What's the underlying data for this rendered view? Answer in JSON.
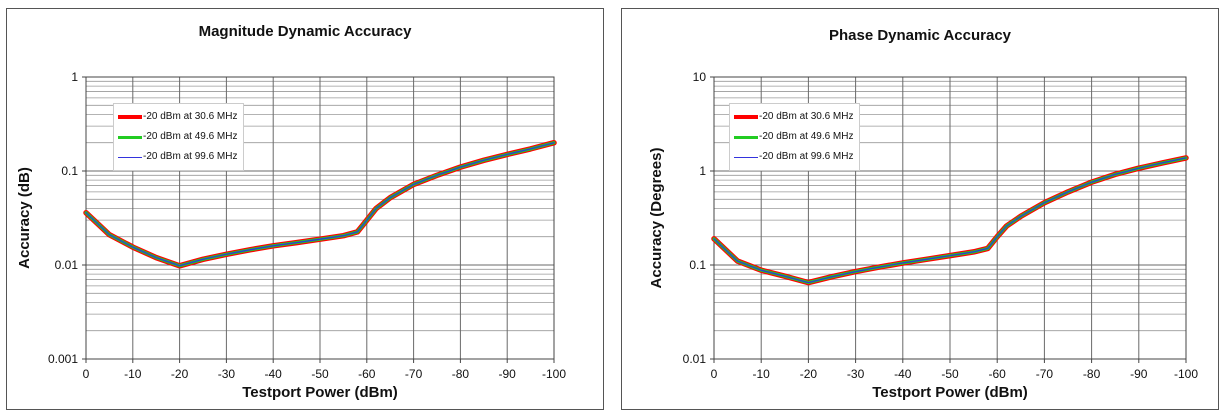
{
  "chart_data": [
    {
      "type": "line",
      "title": "Magnitude Dynamic Accuracy",
      "xlabel": "Testport Power (dBm)",
      "ylabel": "Accuracy (dB)",
      "x_ticks": [
        "0",
        "-10",
        "-20",
        "-30",
        "-40",
        "-50",
        "-60",
        "-70",
        "-80",
        "-90",
        "-100"
      ],
      "y_ticks": [
        "1",
        "0.1",
        "0.01",
        "0.001"
      ],
      "xlim": [
        0,
        -100
      ],
      "ylim": [
        0.001,
        1
      ],
      "y_scale": "log",
      "grid": true,
      "legend": "top-left",
      "series": [
        {
          "name": "-20 dBm at 30.6 MHz",
          "color": "#ff0000",
          "x": [
            0,
            -5,
            -10,
            -15,
            -20,
            -25,
            -30,
            -35,
            -40,
            -45,
            -50,
            -55,
            -58,
            -60,
            -62,
            -65,
            -70,
            -75,
            -80,
            -85,
            -90,
            -95,
            -100
          ],
          "y": [
            0.036,
            0.021,
            0.0155,
            0.012,
            0.0098,
            0.0115,
            0.013,
            0.0145,
            0.016,
            0.0173,
            0.0188,
            0.0205,
            0.0225,
            0.03,
            0.04,
            0.052,
            0.072,
            0.09,
            0.11,
            0.13,
            0.15,
            0.172,
            0.2
          ]
        },
        {
          "name": "-20 dBm at 49.6 MHz",
          "color": "#22cc22",
          "x": [
            0,
            -5,
            -10,
            -15,
            -20,
            -25,
            -30,
            -35,
            -40,
            -45,
            -50,
            -55,
            -58,
            -60,
            -62,
            -65,
            -70,
            -75,
            -80,
            -85,
            -90,
            -95,
            -100
          ],
          "y": [
            0.036,
            0.021,
            0.0155,
            0.012,
            0.0098,
            0.0115,
            0.013,
            0.0145,
            0.016,
            0.0173,
            0.0188,
            0.0205,
            0.0225,
            0.03,
            0.04,
            0.052,
            0.072,
            0.09,
            0.11,
            0.13,
            0.15,
            0.172,
            0.2
          ]
        },
        {
          "name": "-20 dBm at 99.6 MHz",
          "color": "#3333dd",
          "x": [
            0,
            -5,
            -10,
            -15,
            -20,
            -25,
            -30,
            -35,
            -40,
            -45,
            -50,
            -55,
            -58,
            -60,
            -62,
            -65,
            -70,
            -75,
            -80,
            -85,
            -90,
            -95,
            -100
          ],
          "y": [
            0.036,
            0.021,
            0.0155,
            0.012,
            0.0098,
            0.0115,
            0.013,
            0.0145,
            0.016,
            0.0173,
            0.0188,
            0.0205,
            0.0225,
            0.03,
            0.04,
            0.052,
            0.072,
            0.09,
            0.11,
            0.13,
            0.15,
            0.172,
            0.2
          ]
        }
      ]
    },
    {
      "type": "line",
      "title": "Phase Dynamic Accuracy",
      "xlabel": "Testport Power (dBm)",
      "ylabel": "Accuracy (Degrees)",
      "x_ticks": [
        "0",
        "-10",
        "-20",
        "-30",
        "-40",
        "-50",
        "-60",
        "-70",
        "-80",
        "-90",
        "-100"
      ],
      "y_ticks": [
        "10",
        "1",
        "0.1",
        "0.01"
      ],
      "xlim": [
        0,
        -100
      ],
      "ylim": [
        0.01,
        10
      ],
      "y_scale": "log",
      "grid": true,
      "legend": "top-left",
      "series": [
        {
          "name": "-20 dBm at 30.6 MHz",
          "color": "#ff0000",
          "x": [
            0,
            -5,
            -10,
            -15,
            -20,
            -25,
            -30,
            -35,
            -40,
            -45,
            -50,
            -55,
            -58,
            -60,
            -62,
            -65,
            -70,
            -75,
            -80,
            -85,
            -90,
            -95,
            -100
          ],
          "y": [
            0.19,
            0.11,
            0.088,
            0.076,
            0.065,
            0.075,
            0.085,
            0.095,
            0.105,
            0.115,
            0.126,
            0.138,
            0.15,
            0.2,
            0.26,
            0.33,
            0.46,
            0.6,
            0.76,
            0.92,
            1.07,
            1.22,
            1.38
          ]
        },
        {
          "name": "-20 dBm at 49.6 MHz",
          "color": "#22cc22",
          "x": [
            0,
            -5,
            -10,
            -15,
            -20,
            -25,
            -30,
            -35,
            -40,
            -45,
            -50,
            -55,
            -58,
            -60,
            -62,
            -65,
            -70,
            -75,
            -80,
            -85,
            -90,
            -95,
            -100
          ],
          "y": [
            0.19,
            0.11,
            0.088,
            0.076,
            0.065,
            0.075,
            0.085,
            0.095,
            0.105,
            0.115,
            0.126,
            0.138,
            0.15,
            0.2,
            0.26,
            0.33,
            0.46,
            0.6,
            0.76,
            0.92,
            1.07,
            1.22,
            1.38
          ]
        },
        {
          "name": "-20 dBm at 99.6 MHz",
          "color": "#3333dd",
          "x": [
            0,
            -5,
            -10,
            -15,
            -20,
            -25,
            -30,
            -35,
            -40,
            -45,
            -50,
            -55,
            -58,
            -60,
            -62,
            -65,
            -70,
            -75,
            -80,
            -85,
            -90,
            -95,
            -100
          ],
          "y": [
            0.19,
            0.11,
            0.088,
            0.076,
            0.065,
            0.075,
            0.085,
            0.095,
            0.105,
            0.115,
            0.126,
            0.138,
            0.15,
            0.2,
            0.26,
            0.33,
            0.46,
            0.6,
            0.76,
            0.92,
            1.07,
            1.22,
            1.38
          ]
        }
      ]
    }
  ]
}
